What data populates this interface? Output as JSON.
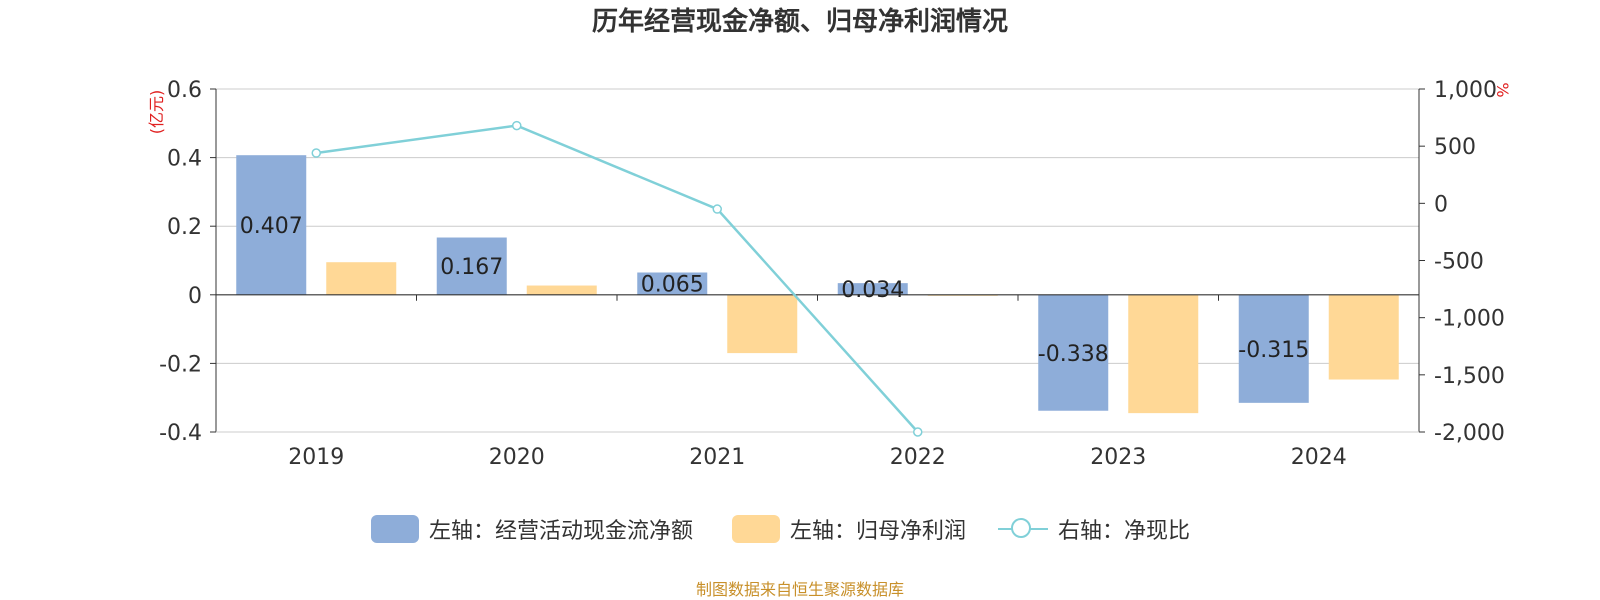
{
  "title": "历年经营现金净额、归母净利润情况",
  "source": "制图数据来自恒生聚源数据库",
  "colors": {
    "cash": "#8eadd9",
    "profit": "#ffd896",
    "ratio": "#80d0d8",
    "unit": "#e02020",
    "axis": "#333333",
    "grid": "#cccccc"
  },
  "chart_data": {
    "type": "bar",
    "categories": [
      "2019",
      "2020",
      "2021",
      "2022",
      "2023",
      "2024"
    ],
    "left_axis": {
      "unit": "(亿元)",
      "ylim": [
        -0.4,
        0.6
      ],
      "ticks": [
        "-0.4",
        "-0.2",
        "0",
        "0.2",
        "0.4",
        "0.6"
      ]
    },
    "right_axis": {
      "unit": "%",
      "ylim": [
        -2000,
        1000
      ],
      "ticks": [
        "-2,000",
        "-1,500",
        "-1,000",
        "-500",
        "0",
        "500",
        "1,000"
      ]
    },
    "series": [
      {
        "name": "左轴：经营活动现金流净额",
        "type": "bar",
        "axis": "left",
        "values": [
          0.407,
          0.167,
          0.065,
          0.034,
          -0.338,
          -0.315
        ],
        "labels": [
          "0.407",
          "0.167",
          "0.065",
          "0.034",
          "-0.338",
          "-0.315"
        ]
      },
      {
        "name": "左轴：归母净利润",
        "type": "bar",
        "axis": "left",
        "values": [
          0.095,
          0.027,
          -0.17,
          -0.002,
          -0.345,
          -0.247
        ]
      },
      {
        "name": "右轴：净现比",
        "type": "line",
        "axis": "right",
        "values": [
          440,
          680,
          -50,
          -2000,
          null,
          null
        ]
      }
    ],
    "grid": true,
    "legend": "bottom"
  }
}
